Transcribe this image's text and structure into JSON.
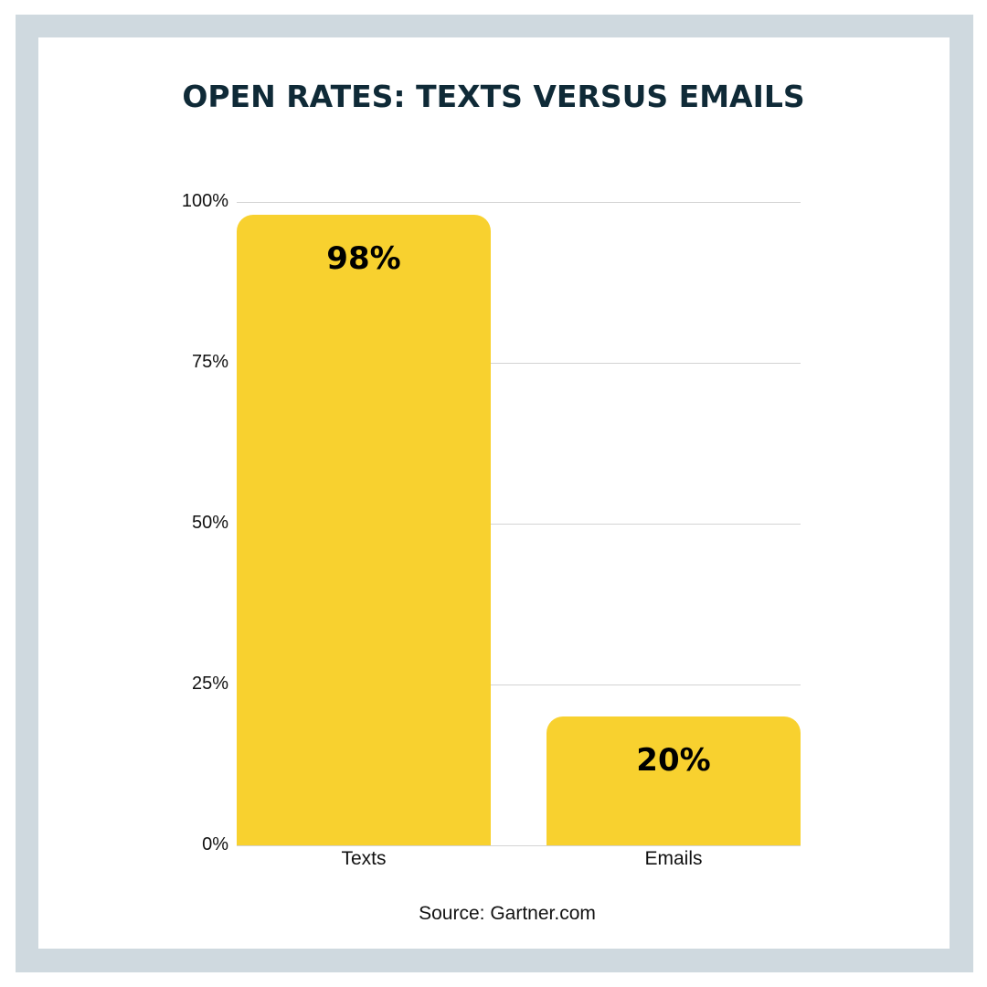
{
  "title": "OPEN RATES: TEXTS VERSUS EMAILS",
  "source": "Source: Gartner.com",
  "colors": {
    "bar": "#f8d12f",
    "frame": "#cfd9df",
    "title": "#0f2a37",
    "grid": "#d3d3d3"
  },
  "y_ticks": [
    "100%",
    "75%",
    "50%",
    "25%",
    "0%"
  ],
  "bars": [
    {
      "category": "Texts",
      "value": 98,
      "label": "98%"
    },
    {
      "category": "Emails",
      "value": 20,
      "label": "20%"
    }
  ],
  "chart_data": {
    "type": "bar",
    "title": "OPEN RATES: TEXTS VERSUS EMAILS",
    "categories": [
      "Texts",
      "Emails"
    ],
    "values": [
      98,
      20
    ],
    "data_labels": [
      "98%",
      "20%"
    ],
    "xlabel": "",
    "ylabel": "",
    "ylim": [
      0,
      100
    ],
    "y_tick_labels": [
      "0%",
      "25%",
      "50%",
      "75%",
      "100%"
    ],
    "grid": true,
    "legend": "none",
    "annotations": [
      "Source: Gartner.com"
    ]
  }
}
